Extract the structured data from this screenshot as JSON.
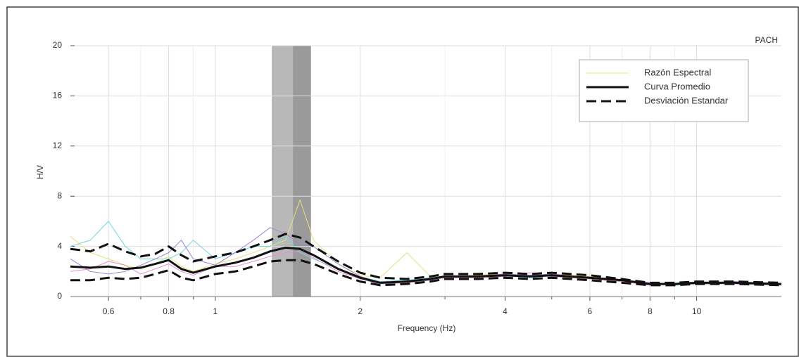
{
  "chart_data": {
    "type": "line",
    "station": "PACH",
    "xlabel": "Frequency (Hz)",
    "ylabel": "H/V",
    "xscale": "log",
    "xlim": [
      0.5,
      15
    ],
    "ylim": [
      0,
      20
    ],
    "xticks": [
      0.6,
      0.8,
      1,
      2,
      4,
      6,
      8,
      10
    ],
    "xminor": [
      0.7,
      0.9,
      3,
      5,
      7,
      9
    ],
    "yticks": [
      0,
      4,
      8,
      12,
      16,
      20
    ],
    "grid": true,
    "peak_band": [
      1.31,
      1.58
    ],
    "peak_band_inner": [
      1.45,
      1.58
    ],
    "x": [
      0.5,
      0.55,
      0.6,
      0.65,
      0.7,
      0.75,
      0.8,
      0.85,
      0.9,
      1,
      1.1,
      1.2,
      1.3,
      1.4,
      1.5,
      1.6,
      1.8,
      2,
      2.2,
      2.5,
      2.8,
      3,
      3.5,
      4,
      4.5,
      5,
      6,
      7,
      8,
      9,
      10,
      12,
      15
    ],
    "series": [
      {
        "name": "Razón Espectral",
        "color": "#e8e07a",
        "width": 1,
        "values": [
          4.8,
          3.5,
          3.0,
          2.5,
          2.2,
          2.6,
          3.2,
          2.4,
          2.0,
          2.6,
          3.0,
          3.5,
          4.0,
          4.5,
          7.7,
          4.5,
          2.6,
          1.7,
          1.5,
          3.5,
          1.6,
          1.6,
          1.7,
          1.8,
          1.6,
          1.8,
          1.6,
          1.3,
          1.0,
          1.0,
          1.2,
          1.1,
          1.0
        ]
      },
      {
        "color": "#6fd6dc",
        "width": 1,
        "values": [
          4.0,
          4.5,
          6.0,
          4.0,
          3.0,
          3.0,
          3.0,
          3.5,
          4.5,
          3.0,
          3.5,
          4.0,
          4.0,
          4.8,
          3.5,
          3.0,
          2.2,
          1.6,
          1.2,
          1.3,
          1.5,
          1.6,
          1.5,
          1.7,
          1.5,
          1.7,
          1.4,
          1.2,
          1.0,
          0.9,
          1.0,
          1.1,
          1.0
        ]
      },
      {
        "color": "#9a86d8",
        "width": 1,
        "values": [
          3.0,
          2.0,
          1.8,
          2.0,
          2.5,
          3.0,
          3.5,
          4.5,
          3.0,
          2.5,
          3.5,
          4.5,
          5.5,
          5.0,
          4.2,
          4.0,
          2.6,
          1.6,
          1.1,
          1.2,
          1.4,
          1.5,
          1.6,
          1.8,
          1.7,
          1.8,
          1.5,
          1.3,
          1.1,
          1.0,
          1.1,
          1.2,
          1.0
        ]
      },
      {
        "color": "#e58fcf",
        "width": 1,
        "values": [
          2.0,
          2.2,
          2.8,
          2.5,
          1.8,
          2.2,
          2.6,
          2.0,
          1.7,
          2.4,
          2.4,
          2.8,
          3.2,
          3.5,
          3.6,
          3.1,
          2.0,
          1.4,
          1.0,
          1.1,
          1.3,
          1.5,
          1.5,
          1.6,
          1.9,
          1.6,
          1.4,
          1.2,
          0.9,
          1.0,
          1.0,
          1.0,
          0.9
        ]
      },
      {
        "name": "Curva Promedio",
        "color": "#111111",
        "width": 3,
        "values": [
          2.4,
          2.3,
          2.4,
          2.2,
          2.3,
          2.6,
          2.9,
          2.2,
          1.9,
          2.4,
          2.7,
          3.1,
          3.6,
          3.9,
          3.8,
          3.3,
          2.2,
          1.5,
          1.1,
          1.2,
          1.4,
          1.6,
          1.6,
          1.7,
          1.6,
          1.7,
          1.5,
          1.3,
          1.0,
          1.0,
          1.1,
          1.1,
          1.0
        ]
      },
      {
        "name": "Desviación Estandar",
        "color": "#111111",
        "width": 3,
        "dash": true,
        "values": [
          3.8,
          3.6,
          4.2,
          3.6,
          3.2,
          3.4,
          4.0,
          3.3,
          2.8,
          3.2,
          3.5,
          4.0,
          4.5,
          5.0,
          4.7,
          4.0,
          2.8,
          1.9,
          1.5,
          1.4,
          1.6,
          1.8,
          1.8,
          1.9,
          1.8,
          1.9,
          1.7,
          1.4,
          1.1,
          1.1,
          1.2,
          1.2,
          1.1
        ]
      },
      {
        "color": "#111111",
        "width": 3,
        "dash": true,
        "values": [
          1.3,
          1.3,
          1.5,
          1.4,
          1.5,
          1.8,
          2.1,
          1.5,
          1.3,
          1.8,
          2.0,
          2.4,
          2.8,
          2.9,
          2.9,
          2.6,
          1.8,
          1.2,
          0.9,
          1.0,
          1.2,
          1.4,
          1.4,
          1.5,
          1.4,
          1.5,
          1.3,
          1.1,
          0.9,
          0.9,
          1.0,
          1.0,
          0.9
        ]
      }
    ]
  }
}
